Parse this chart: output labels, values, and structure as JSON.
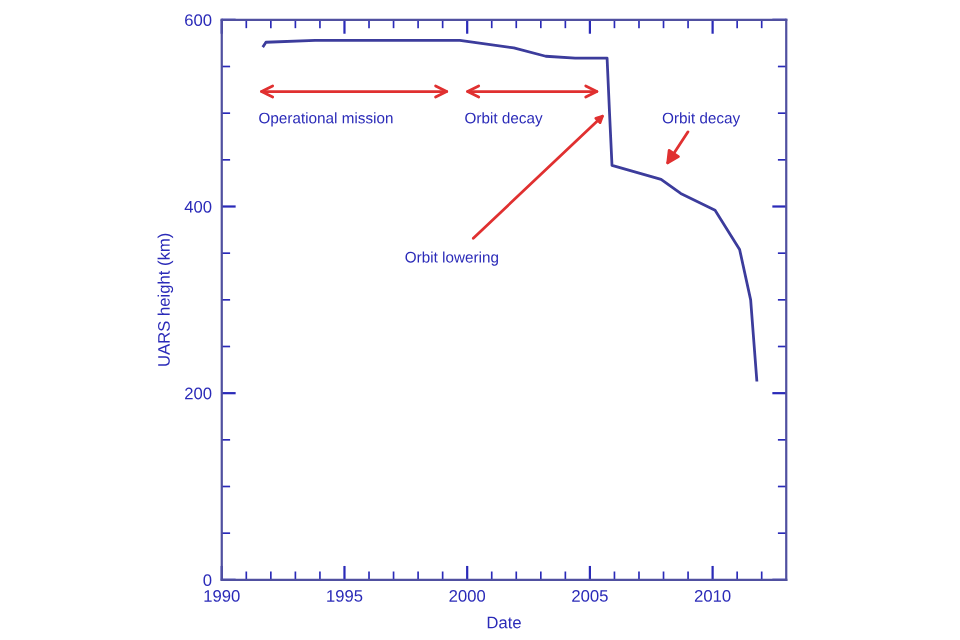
{
  "chart_data": {
    "type": "line",
    "xlabel": "Date",
    "ylabel": "UARS height (km)",
    "x": [
      1991.7,
      1991.8,
      1993.8,
      1999.7,
      2001.9,
      2003.2,
      2004.4,
      2005.7,
      2005.8,
      2005.9,
      2007.9,
      2008.7,
      2010.1,
      2011.1,
      2011.55,
      2011.8
    ],
    "series": [
      {
        "color": "#3c3c9c",
        "values": [
          572,
          576,
          578,
          578,
          570,
          561,
          559,
          559,
          500,
          444,
          429,
          414,
          396,
          354,
          300,
          214
        ]
      }
    ],
    "xlim": [
      1990,
      2013
    ],
    "ylim": [
      0,
      600
    ],
    "xticks": [
      1990,
      {
        "value": 1991,
        "label": null
      },
      {
        "value": 1992,
        "label": null
      },
      {
        "value": 1993,
        "label": null
      },
      {
        "value": 1994,
        "label": null
      },
      1995,
      {
        "value": 1996,
        "label": null
      },
      {
        "value": 1997,
        "label": null
      },
      {
        "value": 1998,
        "label": null
      },
      {
        "value": 1999,
        "label": null
      },
      2000,
      {
        "value": 2001,
        "label": null
      },
      {
        "value": 2002,
        "label": null
      },
      {
        "value": 2003,
        "label": null
      },
      {
        "value": 2004,
        "label": null
      },
      2005,
      {
        "value": 2006,
        "label": null
      },
      {
        "value": 2007,
        "label": null
      },
      {
        "value": 2008,
        "label": null
      },
      {
        "value": 2009,
        "label": null
      },
      2010,
      {
        "value": 2011,
        "label": null
      },
      {
        "value": 2012,
        "label": null
      }
    ],
    "yticks": [
      0,
      {
        "value": 50,
        "label": null
      },
      {
        "value": 100,
        "label": null
      },
      {
        "value": 150,
        "label": null
      },
      200,
      {
        "value": 250,
        "label": null
      },
      {
        "value": 300,
        "label": null
      },
      {
        "value": 350,
        "label": null
      },
      400,
      {
        "value": 450,
        "label": null
      },
      {
        "value": 500,
        "label": null
      },
      {
        "value": 550,
        "label": null
      },
      600
    ],
    "annotations": [
      "Operational mission",
      "Orbit decay",
      {
        "text": "Orbit lowering",
        "x": 2005.6,
        "y": 499
      },
      "Orbit decay"
    ],
    "grid": false,
    "legend": false,
    "marker": "none",
    "line_style": "solid"
  }
}
